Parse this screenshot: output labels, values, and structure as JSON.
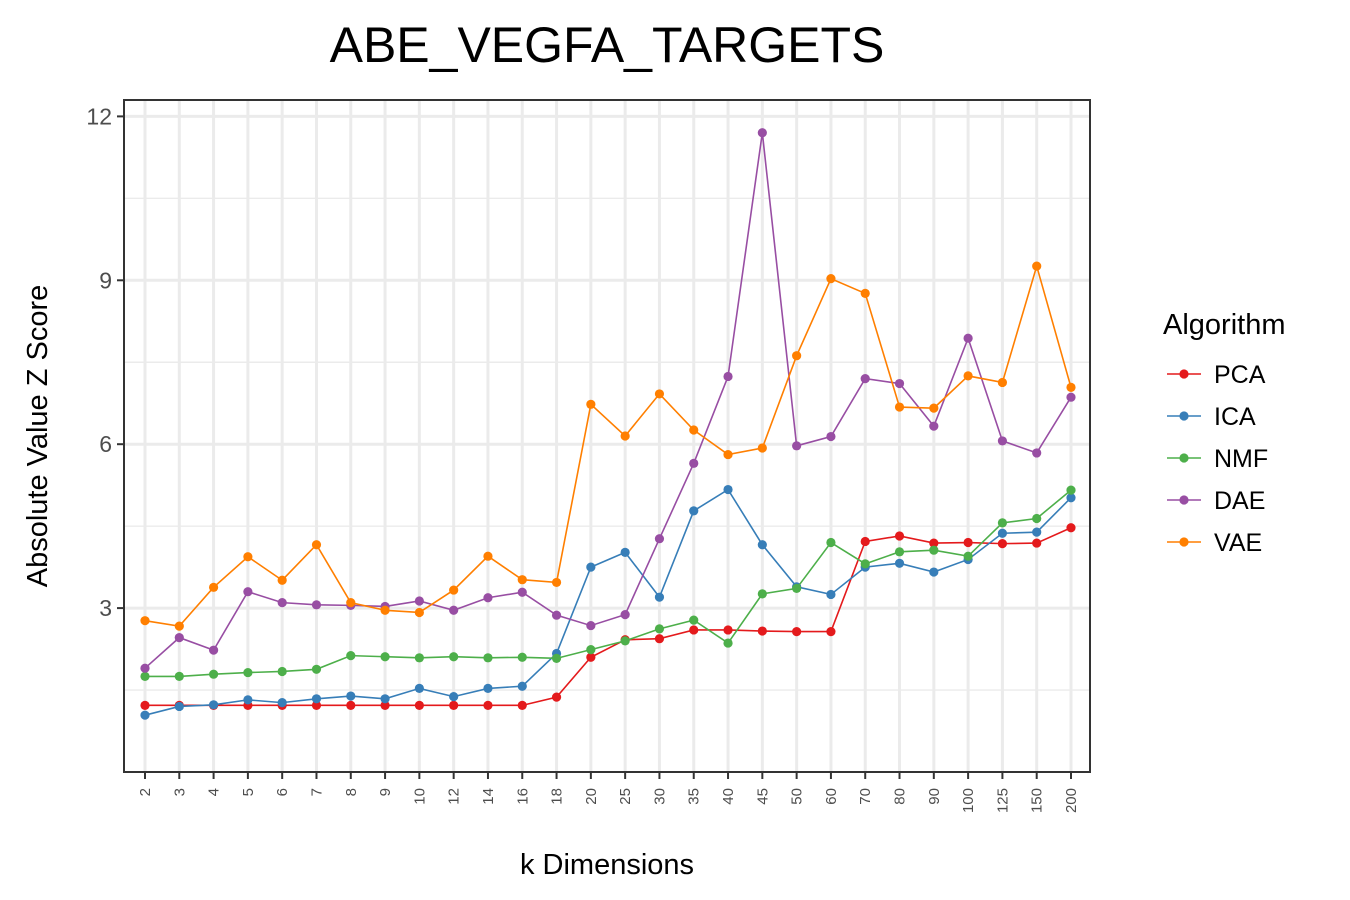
{
  "chart_data": {
    "type": "line",
    "title": "ABE_VEGFA_TARGETS",
    "xlabel": "k Dimensions",
    "ylabel": "Absolute Value Z Score",
    "ylim": [
      0.0,
      12.3
    ],
    "yticks": [
      3,
      6,
      9,
      12
    ],
    "grid": true,
    "legend_title": "Algorithm",
    "legend_position": "right",
    "categories": [
      "2",
      "3",
      "4",
      "5",
      "6",
      "7",
      "8",
      "9",
      "10",
      "12",
      "14",
      "16",
      "18",
      "20",
      "25",
      "30",
      "35",
      "40",
      "45",
      "50",
      "60",
      "70",
      "80",
      "90",
      "100",
      "125",
      "150",
      "200"
    ],
    "series": [
      {
        "name": "PCA",
        "color": "#e41a1c",
        "values": [
          1.22,
          1.22,
          1.22,
          1.22,
          1.22,
          1.22,
          1.22,
          1.22,
          1.22,
          1.22,
          1.22,
          1.22,
          1.37,
          2.1,
          2.42,
          2.44,
          2.6,
          2.6,
          2.58,
          2.57,
          2.57,
          4.22,
          4.32,
          4.19,
          4.2,
          4.18,
          4.19,
          4.47
        ]
      },
      {
        "name": "ICA",
        "color": "#377eb8",
        "values": [
          1.04,
          1.2,
          1.23,
          1.32,
          1.27,
          1.34,
          1.39,
          1.34,
          1.53,
          1.38,
          1.53,
          1.57,
          2.17,
          3.75,
          4.02,
          3.2,
          4.78,
          5.17,
          4.16,
          3.39,
          3.25,
          3.75,
          3.82,
          3.66,
          3.89,
          4.37,
          4.39,
          5.02
        ]
      },
      {
        "name": "NMF",
        "color": "#4daf4a",
        "values": [
          1.75,
          1.75,
          1.79,
          1.82,
          1.84,
          1.88,
          2.13,
          2.11,
          2.09,
          2.11,
          2.09,
          2.1,
          2.08,
          2.24,
          2.4,
          2.62,
          2.78,
          2.36,
          3.26,
          3.36,
          4.2,
          3.81,
          4.03,
          4.06,
          3.95,
          4.56,
          4.64,
          5.16
        ]
      },
      {
        "name": "DAE",
        "color": "#984ea3",
        "values": [
          1.9,
          2.46,
          2.23,
          3.3,
          3.1,
          3.06,
          3.05,
          3.03,
          3.13,
          2.96,
          3.19,
          3.29,
          2.87,
          2.68,
          2.88,
          4.27,
          5.65,
          7.24,
          11.7,
          5.97,
          6.14,
          7.2,
          7.11,
          6.33,
          7.94,
          6.06,
          5.84,
          6.86
        ]
      },
      {
        "name": "VAE",
        "color": "#ff7f00",
        "values": [
          2.77,
          2.67,
          3.38,
          3.94,
          3.51,
          4.16,
          3.1,
          2.96,
          2.92,
          3.33,
          3.95,
          3.52,
          3.47,
          6.73,
          6.15,
          6.92,
          6.26,
          5.81,
          5.93,
          7.62,
          9.03,
          8.76,
          6.68,
          6.66,
          7.25,
          7.13,
          9.26,
          7.04
        ]
      }
    ]
  }
}
